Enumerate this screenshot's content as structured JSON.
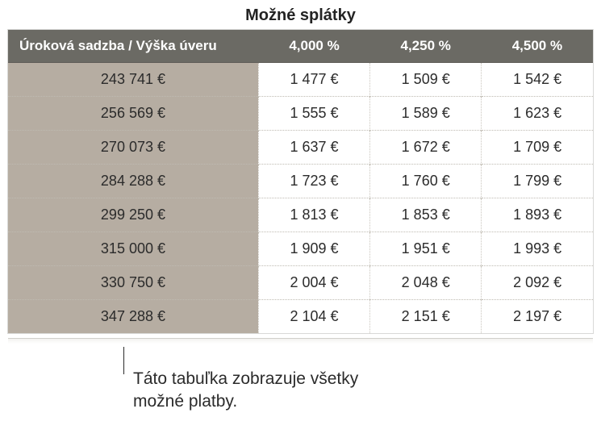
{
  "table": {
    "title": "Možné splátky",
    "header": {
      "first": "Úroková sadzba / Výška úveru",
      "rates": [
        "4,000 %",
        "4,250 %",
        "4,500 %"
      ]
    },
    "rows": [
      {
        "amount": "243 741 €",
        "cells": [
          "1 477 €",
          "1 509 €",
          "1 542 €"
        ]
      },
      {
        "amount": "256 569 €",
        "cells": [
          "1 555 €",
          "1 589 €",
          "1 623 €"
        ]
      },
      {
        "amount": "270 073 €",
        "cells": [
          "1 637 €",
          "1 672 €",
          "1 709 €"
        ]
      },
      {
        "amount": "284 288 €",
        "cells": [
          "1 723 €",
          "1 760 €",
          "1 799 €"
        ]
      },
      {
        "amount": "299 250 €",
        "cells": [
          "1 813 €",
          "1 853 €",
          "1 893 €"
        ]
      },
      {
        "amount": "315 000 €",
        "cells": [
          "1 909 €",
          "1 951 €",
          "1 993 €"
        ]
      },
      {
        "amount": "330 750 €",
        "cells": [
          "2 004 €",
          "2 048 €",
          "2 092 €"
        ]
      },
      {
        "amount": "347 288 €",
        "cells": [
          "2 104 €",
          "2 151 €",
          "2 197 €"
        ]
      }
    ],
    "colors": {
      "header_bg": "#6b6a64",
      "header_text": "#ffffff",
      "rowheader_bg": "#b6ada2",
      "body_bg": "#ffffff",
      "dotted_border": "#c9c5bd",
      "text": "#2b2b2b"
    },
    "font_sizes": {
      "title_pt": 20,
      "header_pt": 17,
      "body_pt": 18,
      "callout_pt": 21
    }
  },
  "callout": {
    "text": "Táto tabuľka zobrazuje všetky možné platby."
  }
}
